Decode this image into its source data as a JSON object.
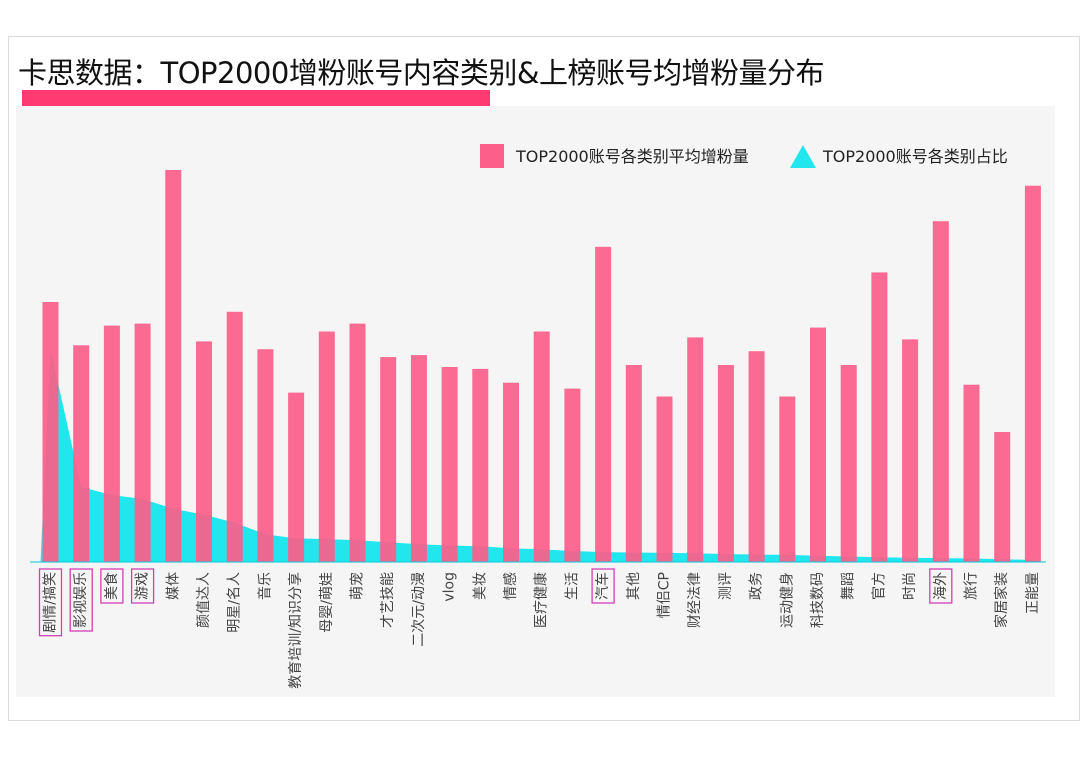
{
  "page": {
    "title": "卡思数据：TOP2000增粉账号内容类别&上榜账号均增粉量分布"
  },
  "chart_data": {
    "type": "bar",
    "title": "卡思数据：TOP2000增粉账号内容类别&上榜账号均增粉量分布",
    "xlabel": "",
    "ylabel": "",
    "grid": false,
    "ylim": [
      0,
      100
    ],
    "legend_position": "top-right",
    "categories": [
      "剧情/搞笑",
      "影视娱乐",
      "美食",
      "游戏",
      "媒体",
      "颜值达人",
      "明星/名人",
      "音乐",
      "教育培训/知识分享",
      "母婴/萌娃",
      "萌宠",
      "才艺技能",
      "二次元/动漫",
      "vlog",
      "美妆",
      "情感",
      "医疗健康",
      "生活",
      "汽车",
      "其他",
      "情侣CP",
      "财经法律",
      "测评",
      "政务",
      "运动健身",
      "科技数码",
      "舞蹈",
      "官方",
      "时尚",
      "海外",
      "旅行",
      "家居家装",
      "正能量"
    ],
    "highlighted_categories": [
      "剧情/搞笑",
      "影视娱乐",
      "美食",
      "游戏",
      "汽车",
      "海外"
    ],
    "series": [
      {
        "name": "TOP2000账号各类别平均增粉量",
        "type": "bar",
        "color": "#fb5f8a",
        "values": [
          66,
          55,
          60,
          60.5,
          99.5,
          56,
          63.5,
          54,
          43,
          58.5,
          60.5,
          52,
          52.5,
          49.5,
          49,
          45.5,
          58.5,
          44,
          80,
          50,
          42,
          57,
          50,
          53.5,
          42,
          59.5,
          50,
          73.5,
          56.5,
          86.5,
          45,
          33,
          95.5
        ]
      },
      {
        "name": "TOP2000账号各类别占比",
        "type": "area",
        "color": "#22e6ee",
        "values": [
          54,
          19,
          17,
          16,
          13.5,
          12,
          10,
          7,
          6,
          5.8,
          5.5,
          5,
          4.5,
          4.2,
          4,
          3.5,
          3.2,
          2.8,
          2.5,
          2.4,
          2.3,
          2.2,
          2,
          1.9,
          1.8,
          1.6,
          1.4,
          1.2,
          1.1,
          1,
          0.9,
          0.7,
          0.5
        ]
      }
    ]
  }
}
